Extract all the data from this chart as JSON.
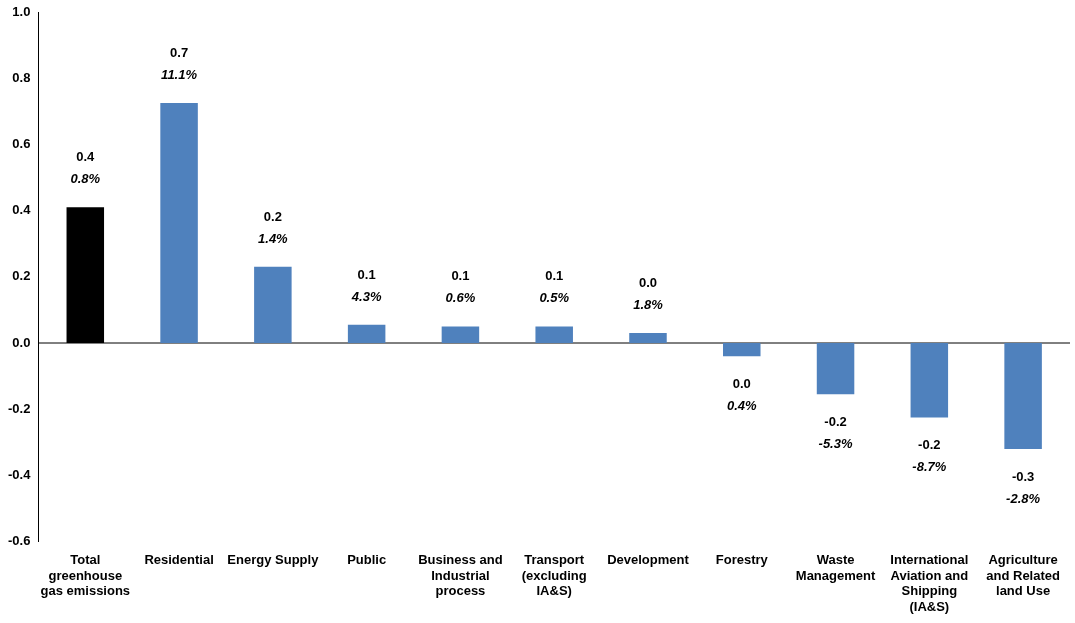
{
  "chart_data": {
    "type": "bar",
    "categories": [
      "Total greenhouse gas emissions",
      "Residential",
      "Energy Supply",
      "Public",
      "Business and Industrial process",
      "Transport (excluding IA&S)",
      "Development",
      "Forestry",
      "Waste Management",
      "International Aviation and Shipping (IA&S)",
      "Agriculture and Related land Use"
    ],
    "values": [
      0.41,
      0.725,
      0.23,
      0.055,
      0.05,
      0.05,
      0.03,
      -0.04,
      -0.155,
      -0.225,
      -0.32
    ],
    "colors": [
      "#000000",
      "#4f81bd",
      "#4f81bd",
      "#4f81bd",
      "#4f81bd",
      "#4f81bd",
      "#4f81bd",
      "#4f81bd",
      "#4f81bd",
      "#4f81bd",
      "#4f81bd"
    ],
    "value_labels": [
      "0.4\n0.8%",
      "0.7\n11.1%",
      "0.2\n1.4%",
      "0.1\n4.3%",
      "0.1\n0.6%",
      "0.1\n0.5%",
      "0.0\n1.8%",
      "0.0\n0.4%",
      "-0.2\n-5.3%",
      "-0.2\n-8.7%",
      "-0.3\n-2.8%"
    ],
    "ylim": [
      -0.6,
      1.0
    ],
    "yticks": [
      {
        "value": -0.6,
        "label": "-0.6"
      },
      {
        "value": -0.4,
        "label": "-0.4"
      },
      {
        "value": -0.2,
        "label": "-0.2"
      },
      {
        "value": 0,
        "label": "0.0"
      },
      {
        "value": 0.2,
        "label": "0.2"
      },
      {
        "value": 0.4,
        "label": "0.4"
      },
      {
        "value": 0.6,
        "label": "0.6"
      },
      {
        "value": 0.8,
        "label": "0.8"
      },
      {
        "value": 1.0,
        "label": "1.0"
      }
    ],
    "ref_lines": [
      {
        "axis": "y",
        "value": 0,
        "color": "#000000"
      }
    ],
    "grid": false,
    "legend": false
  }
}
